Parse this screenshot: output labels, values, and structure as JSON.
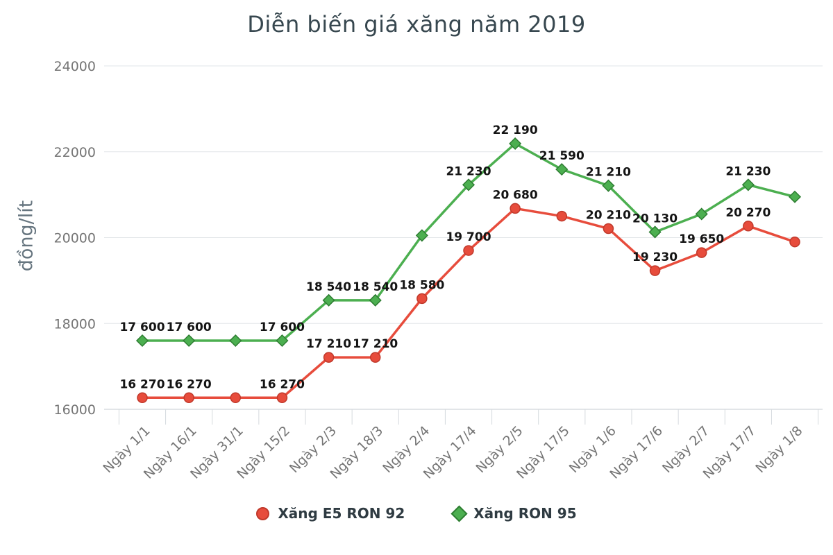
{
  "chart_data": {
    "type": "line",
    "title": "Diễn biến giá xăng năm 2019",
    "ylabel": "đồng/lít",
    "xlabel": "",
    "ylim": [
      16000,
      24000
    ],
    "y_ticks": [
      16000,
      18000,
      20000,
      22000,
      24000
    ],
    "grid": true,
    "legend_position": "bottom",
    "categories": [
      "Ngày 1/1",
      "Ngày 16/1",
      "Ngày 31/1",
      "Ngày 15/2",
      "Ngày 2/3",
      "Ngày 18/3",
      "Ngày 2/4",
      "Ngày 17/4",
      "Ngày 2/5",
      "Ngày 17/5",
      "Ngày 1/6",
      "Ngày 17/6",
      "Ngày 2/7",
      "Ngày 17/7",
      "Ngày 1/8"
    ],
    "series": [
      {
        "name": "Xăng E5 RON 92",
        "marker": "circle",
        "color": "#e74c3c",
        "border": "#c0392b",
        "values": [
          16270,
          16270,
          16270,
          16270,
          17210,
          17210,
          18580,
          19700,
          20680,
          20500,
          20210,
          19230,
          19650,
          20270,
          19900
        ],
        "point_labels": [
          "16 270",
          "16 270",
          null,
          "16 270",
          "17 210",
          "17 210",
          "18 580",
          "19 700",
          "20 680",
          null,
          "20 210",
          "19 230",
          "19 650",
          "20 270",
          null
        ]
      },
      {
        "name": "Xăng RON 95",
        "marker": "diamond",
        "color": "#4caf50",
        "border": "#2e7d32",
        "values": [
          17600,
          17600,
          17600,
          17600,
          18540,
          18540,
          20050,
          21230,
          22190,
          21590,
          21210,
          20130,
          20550,
          21230,
          20950
        ],
        "point_labels": [
          "17 600",
          "17 600",
          null,
          "17 600",
          "18 540",
          "18 540",
          null,
          "21 230",
          "22 190",
          "21 590",
          "21 210",
          "20 130",
          null,
          "21 230",
          null
        ]
      }
    ]
  }
}
